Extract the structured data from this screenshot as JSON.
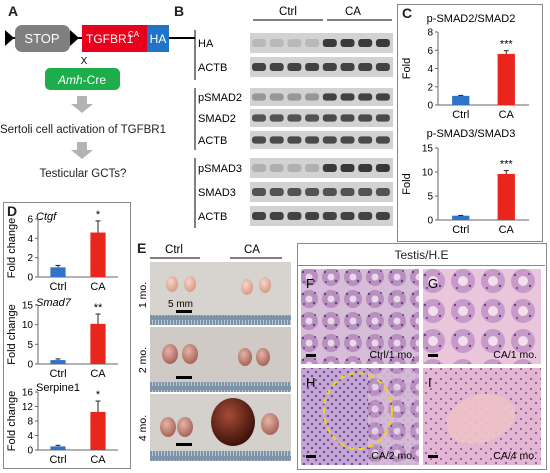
{
  "panel_a": {
    "letter": "A",
    "stop_label": "STOP",
    "tgfbr1_label": "TGFBR1",
    "ca_superscript": "CA",
    "ha_label": "HA",
    "cross": "X",
    "cre_label_italic": "Amh",
    "cre_label_rest": "-Cre",
    "step1": "Sertoli cell activation of TGFBR1",
    "step2": "Testicular GCTs?",
    "colors": {
      "stop": "#7f7f7f",
      "tgfbr1": "#e8001c",
      "ha": "#1f74c8",
      "cre": "#1dad4b"
    }
  },
  "panel_b": {
    "letter": "B",
    "ctrl": "Ctrl",
    "ca": "CA",
    "blot_labels": [
      "HA",
      "ACTB",
      "pSMAD2",
      "SMAD2",
      "ACTB",
      "pSMAD3",
      "SMAD3",
      "ACTB"
    ]
  },
  "panel_c": {
    "letter": "C",
    "chart1_title": "p-SMAD2/SMAD2",
    "chart2_title": "p-SMAD3/SMAD3"
  },
  "panel_d": {
    "letter": "D",
    "gene1": "Ctgf",
    "gene2": "Smad7",
    "gene3": "Serpine1",
    "ylabel": "Fold change"
  },
  "panel_e": {
    "letter": "E",
    "ctrl": "Ctrl",
    "ca": "CA",
    "row_labels": [
      "1 mo.",
      "2 mo.",
      "4 mo."
    ],
    "scale": "5 mm"
  },
  "panel_fi": {
    "header": "Testis/H.E",
    "tiles": [
      {
        "letter": "F",
        "caption": "Ctrl/1 mo."
      },
      {
        "letter": "G",
        "caption": "CA/1 mo."
      },
      {
        "letter": "H",
        "caption": "CA/2 mo."
      },
      {
        "letter": "I",
        "caption": "CA/4 mo."
      }
    ]
  },
  "chart_data": [
    {
      "type": "bar",
      "title": "p-SMAD2/SMAD2",
      "ylabel": "Fold",
      "categories": [
        "Ctrl",
        "CA"
      ],
      "values": [
        1.0,
        5.6
      ],
      "errors": [
        0.05,
        0.35
      ],
      "ylim": [
        0,
        8
      ],
      "yticks": [
        0,
        2,
        4,
        6,
        8
      ],
      "significance": [
        "",
        "***"
      ],
      "colors": [
        "#2e75c9",
        "#e8261c"
      ]
    },
    {
      "type": "bar",
      "title": "p-SMAD3/SMAD3",
      "ylabel": "Fold",
      "categories": [
        "Ctrl",
        "CA"
      ],
      "values": [
        0.9,
        9.6
      ],
      "errors": [
        0.05,
        0.7
      ],
      "ylim": [
        0,
        15
      ],
      "yticks": [
        0,
        5,
        10,
        15
      ],
      "significance": [
        "",
        "***"
      ],
      "colors": [
        "#2e75c9",
        "#e8261c"
      ]
    },
    {
      "type": "bar",
      "title": "Ctgf",
      "ylabel": "Fold change",
      "categories": [
        "Ctrl",
        "CA"
      ],
      "values": [
        1.0,
        4.6
      ],
      "errors": [
        0.2,
        1.2
      ],
      "ylim": [
        0,
        6
      ],
      "yticks": [
        0,
        2,
        4,
        6
      ],
      "significance": [
        "",
        "*"
      ],
      "colors": [
        "#2e75c9",
        "#e8261c"
      ]
    },
    {
      "type": "bar",
      "title": "Smad7",
      "ylabel": "Fold change",
      "categories": [
        "Ctrl",
        "CA"
      ],
      "values": [
        1.0,
        10.2
      ],
      "errors": [
        0.3,
        2.5
      ],
      "ylim": [
        0,
        15
      ],
      "yticks": [
        0,
        5,
        10,
        15
      ],
      "significance": [
        "",
        "**"
      ],
      "colors": [
        "#2e75c9",
        "#e8261c"
      ]
    },
    {
      "type": "bar",
      "title": "Serpine1",
      "ylabel": "Fold change",
      "categories": [
        "Ctrl",
        "CA"
      ],
      "values": [
        1.0,
        10.5
      ],
      "errors": [
        0.3,
        3.0
      ],
      "ylim": [
        0,
        16
      ],
      "yticks": [
        0,
        4,
        8,
        12,
        16
      ],
      "significance": [
        "",
        "*"
      ],
      "colors": [
        "#2e75c9",
        "#e8261c"
      ]
    }
  ]
}
